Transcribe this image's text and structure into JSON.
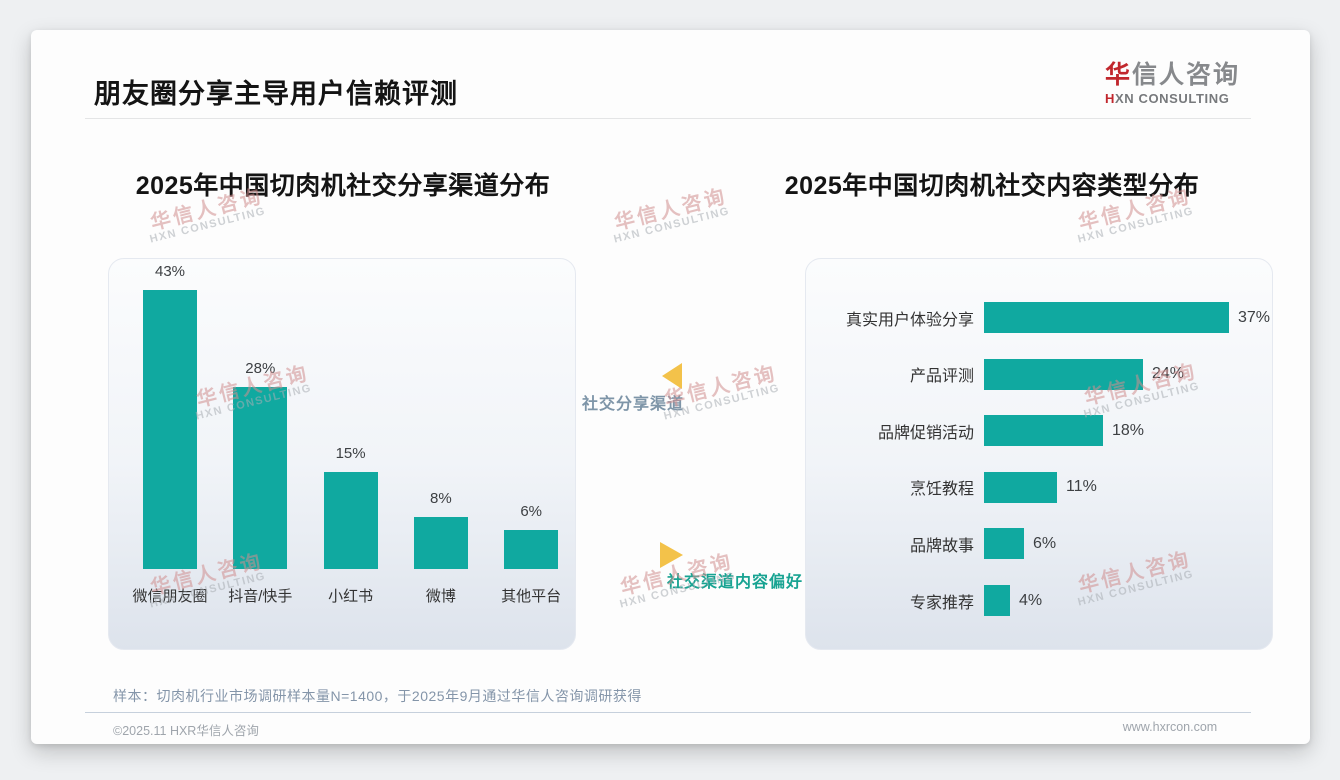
{
  "page": {
    "title": "朋友圈分享主导用户信赖评测"
  },
  "logo": {
    "cn_red": "华",
    "cn_gray": "信人咨询",
    "en_red": "H",
    "en_gray": "XN CONSULTING"
  },
  "watermark": {
    "cn": "华信人咨询",
    "en": "HXN CONSULTING"
  },
  "annotations": {
    "share_channel_label": "社交分享渠道",
    "content_preference_label": "社交渠道内容偏好"
  },
  "footer": {
    "sample_note": "样本：切肉机行业市场调研样本量N=1400，于2025年9月通过华信人咨询调研获得",
    "copyright": "©2025.11 HXR华信人咨询",
    "website": "www.hxrcon.com"
  },
  "colors": {
    "bar_teal": "#10a9a0",
    "arrow_gold": "#f3c24a",
    "logo_red": "#c1272d",
    "watermark_pink": "#d18f8f",
    "mid_label_blue": "#7e95a8",
    "mid_label_teal": "#18a392"
  },
  "chart_data": [
    {
      "type": "bar",
      "orientation": "vertical",
      "title": "2025年中国切肉机社交分享渠道分布",
      "categories": [
        "微信朋友圈",
        "抖音/快手",
        "小红书",
        "微博",
        "其他平台"
      ],
      "values": [
        43,
        28,
        15,
        8,
        6
      ],
      "unit": "%",
      "value_labels": [
        "43%",
        "28%",
        "15%",
        "8%",
        "6%"
      ],
      "ylim": [
        0,
        48
      ],
      "grid": false,
      "legend": "none"
    },
    {
      "type": "bar",
      "orientation": "horizontal",
      "title": "2025年中国切肉机社交内容类型分布",
      "categories": [
        "真实用户体验分享",
        "产品评测",
        "品牌促销活动",
        "烹饪教程",
        "品牌故事",
        "专家推荐"
      ],
      "values": [
        37,
        24,
        18,
        11,
        6,
        4
      ],
      "unit": "%",
      "value_labels": [
        "37%",
        "24%",
        "18%",
        "11%",
        "6%",
        "4%"
      ],
      "xlim": [
        0,
        44
      ],
      "grid": false,
      "legend": "none"
    }
  ]
}
